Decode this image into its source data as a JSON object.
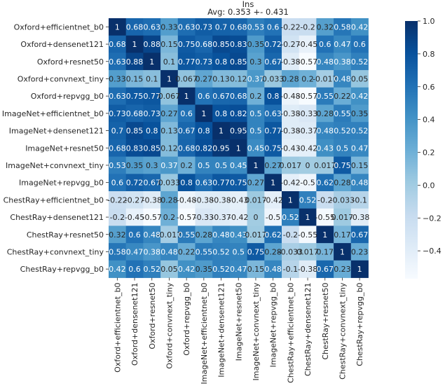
{
  "chart_data": {
    "type": "heatmap",
    "title": "Ins",
    "subtitle": "Avg: 0.353 +- 0.431",
    "labels": [
      "Oxford+efficientnet_b0",
      "Oxford+densenet121",
      "Oxford+resnet50",
      "Oxford+convnext_tiny",
      "Oxford+repvgg_b0",
      "ImageNet+efficientnet_b0",
      "ImageNet+densenet121",
      "ImageNet+resnet50",
      "ImageNet+convnext_tiny",
      "ImageNet+repvgg_b0",
      "ChestRay+efficientnet_b0",
      "ChestRay+densenet121",
      "ChestRay+resnet50",
      "ChestRay+convnext_tiny",
      "ChestRay+repvgg_b0"
    ],
    "cell_text": [
      [
        "1",
        "0.68",
        "0.63",
        "0.33",
        "0.63",
        "0.73",
        "0.7",
        "0.68",
        "0.53",
        "0.6",
        "-0.22",
        "-0.2",
        "0.32",
        "0.58",
        "0.42"
      ],
      [
        "0.68",
        "1",
        "0.88",
        "0.15",
        "0.75",
        "0.68",
        "0.85",
        "0.83",
        "0.35",
        "0.72",
        "-0.27",
        "-0.45",
        "0.6",
        "0.47",
        "0.6"
      ],
      [
        "0.63",
        "0.88",
        "1",
        "0.1",
        "0.77",
        "0.73",
        "0.8",
        "0.85",
        "0.3",
        "0.67",
        "-0.38",
        "-0.57",
        "0.48",
        "0.38",
        "0.52"
      ],
      [
        "0.33",
        "0.15",
        "0.1",
        "1",
        "0.067",
        "0.27",
        "0.13",
        "0.12",
        "0.37",
        "0.033",
        "0.28",
        "0.2",
        "-0.017",
        "0.48",
        "0.05"
      ],
      [
        "0.63",
        "0.75",
        "0.77",
        "0.067",
        "1",
        "0.6",
        "0.67",
        "0.68",
        "0.2",
        "0.8",
        "-0.48",
        "-0.57",
        "0.55",
        "0.22",
        "0.42"
      ],
      [
        "0.73",
        "0.68",
        "0.73",
        "0.27",
        "0.6",
        "1",
        "0.8",
        "0.82",
        "0.5",
        "0.63",
        "-0.38",
        "-0.33",
        "0.28",
        "0.55",
        "0.35"
      ],
      [
        "0.7",
        "0.85",
        "0.8",
        "0.13",
        "0.67",
        "0.8",
        "1",
        "0.95",
        "0.5",
        "0.77",
        "-0.38",
        "-0.37",
        "0.48",
        "0.52",
        "0.52"
      ],
      [
        "0.68",
        "0.83",
        "0.85",
        "0.12",
        "0.68",
        "0.82",
        "0.95",
        "1",
        "0.45",
        "0.75",
        "-0.43",
        "-0.42",
        "0.43",
        "0.5",
        "0.47"
      ],
      [
        "0.53",
        "0.35",
        "0.3",
        "0.37",
        "0.2",
        "0.5",
        "0.5",
        "0.45",
        "1",
        "0.27",
        "0.017",
        "0",
        "0.017",
        "0.75",
        "0.15"
      ],
      [
        "0.6",
        "0.72",
        "0.67",
        "0.033",
        "0.8",
        "0.63",
        "0.77",
        "0.75",
        "0.27",
        "1",
        "-0.42",
        "-0.5",
        "0.62",
        "0.28",
        "0.48"
      ],
      [
        "-0.22",
        "-0.27",
        "-0.38",
        "0.28",
        "-0.48",
        "-0.38",
        "-0.38",
        "-0.43",
        "0.017",
        "-0.42",
        "1",
        "0.52",
        "-0.2",
        "-0.033",
        "-0.1"
      ],
      [
        "-0.2",
        "-0.45",
        "-0.57",
        "0.2",
        "-0.57",
        "-0.33",
        "-0.37",
        "-0.42",
        "0",
        "-0.5",
        "0.52",
        "1",
        "-0.55",
        "0.017",
        "-0.38"
      ],
      [
        "0.32",
        "0.6",
        "0.48",
        "-0.017",
        "0.55",
        "0.28",
        "0.48",
        "0.43",
        "0.017",
        "0.62",
        "-0.2",
        "-0.55",
        "1",
        "0.17",
        "0.67"
      ],
      [
        "0.58",
        "0.47",
        "0.38",
        "0.48",
        "0.22",
        "0.55",
        "0.52",
        "0.5",
        "0.75",
        "0.28",
        "-0.033",
        "0.017",
        "0.17",
        "1",
        "0.23"
      ],
      [
        "0.42",
        "0.6",
        "0.52",
        "0.05",
        "0.42",
        "0.35",
        "0.52",
        "0.47",
        "0.15",
        "0.48",
        "-0.1",
        "-0.38",
        "0.67",
        "0.23",
        "1"
      ]
    ],
    "colorbar": {
      "min": -0.57,
      "max": 1.0,
      "ticks": [
        1.0,
        0.8,
        0.6,
        0.4,
        0.2,
        0.0,
        -0.2,
        -0.4
      ],
      "tick_labels": [
        "1.0",
        "0.8",
        "0.6",
        "0.4",
        "0.2",
        "0.0",
        "−0.2",
        "−0.4"
      ],
      "colormap": "Blues"
    },
    "colors": {
      "low": "#f7fbff",
      "mid": "#6baed6",
      "high": "#08306b",
      "text_light": "#ffffff",
      "text_dark": "#262626"
    }
  }
}
